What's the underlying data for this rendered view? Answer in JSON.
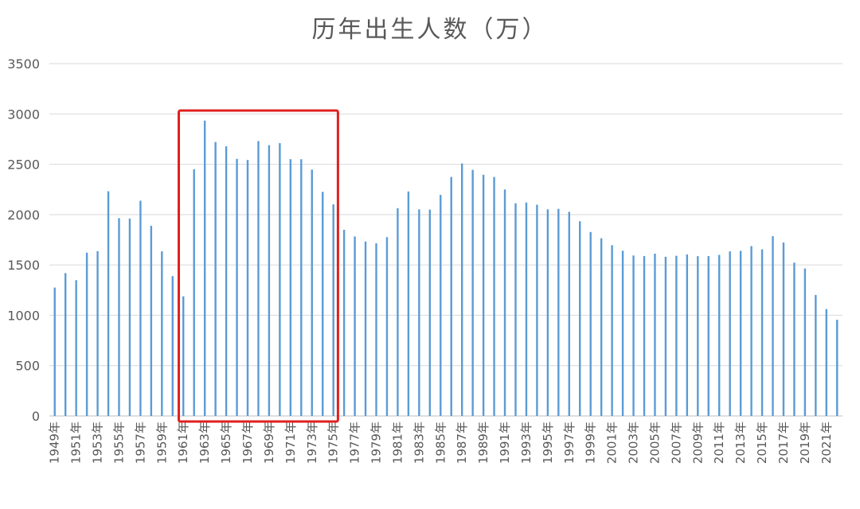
{
  "chart_data": {
    "type": "bar",
    "title": "历年出生人数（万）",
    "xlabel": "",
    "ylabel": "",
    "ylim": [
      0,
      3500
    ],
    "yticks": [
      0,
      500,
      1000,
      1500,
      2000,
      2500,
      3000,
      3500
    ],
    "grid": true,
    "bar_color": "#5b9bd5",
    "highlight_color": "#e02020",
    "categories": [
      "1949年",
      "1950年",
      "1951年",
      "1952年",
      "1953年",
      "1954年",
      "1955年",
      "1956年",
      "1957年",
      "1958年",
      "1959年",
      "1960年",
      "1961年",
      "1962年",
      "1963年",
      "1964年",
      "1965年",
      "1966年",
      "1967年",
      "1968年",
      "1969年",
      "1970年",
      "1971年",
      "1972年",
      "1973年",
      "1974年",
      "1975年",
      "1976年",
      "1977年",
      "1978年",
      "1979年",
      "1980年",
      "1981年",
      "1982年",
      "1983年",
      "1984年",
      "1985年",
      "1986年",
      "1987年",
      "1988年",
      "1989年",
      "1990年",
      "1991年",
      "1992年",
      "1993年",
      "1994年",
      "1995年",
      "1996年",
      "1997年",
      "1998年",
      "1999年",
      "2000年",
      "2001年",
      "2002年",
      "2003年",
      "2004年",
      "2005年",
      "2006年",
      "2007年",
      "2008年",
      "2009年",
      "2010年",
      "2011年",
      "2012年",
      "2013年",
      "2014年",
      "2015年",
      "2016年",
      "2017年",
      "2018年",
      "2019年",
      "2020年",
      "2021年",
      "2022年"
    ],
    "tick_labels": [
      "1949年",
      "1951年",
      "1953年",
      "1955年",
      "1957年",
      "1959年",
      "1961年",
      "1963年",
      "1965年",
      "1967年",
      "1969年",
      "1971年",
      "1973年",
      "1975年",
      "1977年",
      "1979年",
      "1981年",
      "1983年",
      "1985年",
      "1987年",
      "1989年",
      "1991年",
      "1993年",
      "1995年",
      "1997年",
      "1999年",
      "2001年",
      "2003年",
      "2005年",
      "2007年",
      "2009年",
      "2011年",
      "2013年",
      "2015年",
      "2017年",
      "2019年",
      "2021年"
    ],
    "values": [
      1275,
      1419,
      1349,
      1622,
      1637,
      2232,
      1965,
      1961,
      2138,
      1889,
      1635,
      1389,
      1188,
      2451,
      2934,
      2721,
      2679,
      2554,
      2543,
      2731,
      2690,
      2710,
      2551,
      2550,
      2447,
      2226,
      2102,
      1849,
      1783,
      1733,
      1715,
      1776,
      2064,
      2230,
      2052,
      2050,
      2196,
      2374,
      2508,
      2445,
      2396,
      2374,
      2250,
      2113,
      2120,
      2098,
      2052,
      2057,
      2028,
      1934,
      1827,
      1765,
      1696,
      1641,
      1594,
      1588,
      1612,
      1581,
      1591,
      1604,
      1587,
      1588,
      1600,
      1635,
      1640,
      1687,
      1655,
      1786,
      1723,
      1523,
      1465,
      1202,
      1062,
      956
    ],
    "highlight_range": [
      "1961年",
      "1975年"
    ]
  }
}
